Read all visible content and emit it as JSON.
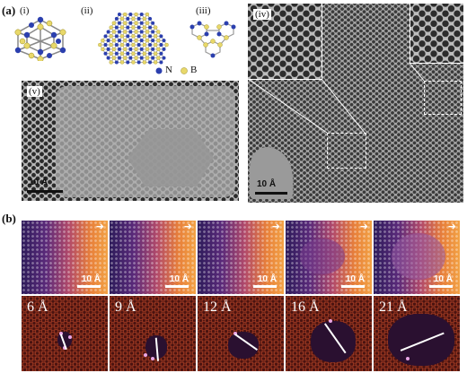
{
  "panel_a": {
    "letter": "(a)",
    "sub": [
      "(i)",
      "(ii)",
      "(iii)",
      "(iv)",
      "(v)"
    ],
    "legend": {
      "n_label": "N",
      "b_label": "B",
      "n_color": "#2b3fae",
      "b_color": "#e8d86a"
    },
    "scale_v": "10 Å",
    "scale_iv": "10 Å"
  },
  "panel_b": {
    "letter": "(b)",
    "scale": "10 Å",
    "sizes": [
      "6 Å",
      "9 Å",
      "12 Å",
      "16 Å",
      "21 Å"
    ],
    "arrow": "➜"
  }
}
